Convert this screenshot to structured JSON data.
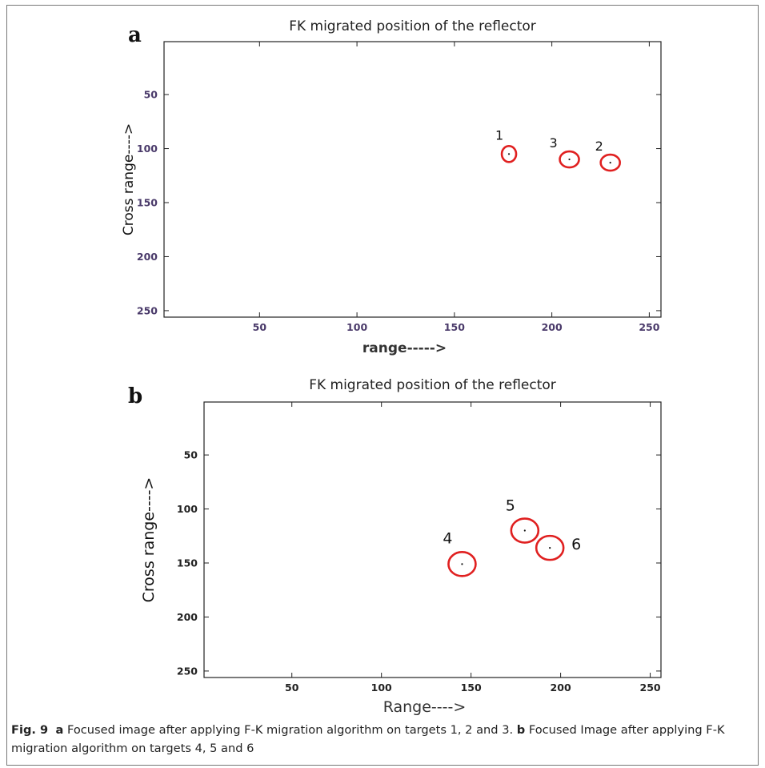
{
  "chart_data": [
    {
      "panel_label": "a",
      "type": "scatter",
      "title": "FK migrated position of the reflector",
      "xlabel": "range----->",
      "ylabel": "Cross range---->",
      "xlim": [
        1,
        256
      ],
      "ylim": [
        1,
        256
      ],
      "y_inverted": true,
      "xticks": [
        50,
        100,
        150,
        200,
        250
      ],
      "yticks": [
        50,
        100,
        150,
        200,
        250
      ],
      "marker_color": "#e02020",
      "points": [
        {
          "label": "1",
          "x": 178,
          "y": 105
        },
        {
          "label": "2",
          "x": 230,
          "y": 113
        },
        {
          "label": "3",
          "x": 209,
          "y": 110
        }
      ]
    },
    {
      "panel_label": "b",
      "type": "scatter",
      "title": "FK migrated position of the reflector",
      "xlabel": "Range---->",
      "ylabel": "Cross range---->",
      "xlim": [
        1,
        256
      ],
      "ylim": [
        1,
        256
      ],
      "y_inverted": true,
      "xticks": [
        50,
        100,
        150,
        200,
        250
      ],
      "yticks": [
        50,
        100,
        150,
        200,
        250
      ],
      "marker_color": "#e02020",
      "points": [
        {
          "label": "4",
          "x": 145,
          "y": 151
        },
        {
          "label": "5",
          "x": 180,
          "y": 120
        },
        {
          "label": "6",
          "x": 194,
          "y": 136
        }
      ]
    }
  ],
  "caption": {
    "fig_label": "Fig. 9",
    "a_label": "a",
    "a_text": " Focused image after applying F-K migration algorithm on targets 1, 2 and 3. ",
    "b_label": "b",
    "b_text": " Focused Image after applying F-K migration algorithm on targets 4, 5 and 6"
  }
}
